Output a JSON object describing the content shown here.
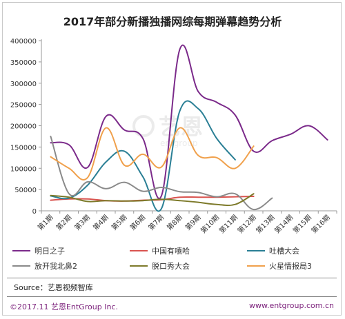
{
  "chart_data": {
    "type": "line",
    "title": "2017年部分新播独播网综每期弹幕趋势分析",
    "categories": [
      "第1期",
      "第2期",
      "第3期",
      "第4期",
      "第5期",
      "第6期",
      "第7期",
      "第8期",
      "第9期",
      "第10期",
      "第11期",
      "第12期",
      "第13期",
      "第14期",
      "第15期",
      "第16期"
    ],
    "ylim": [
      0,
      400000
    ],
    "yticks": [
      0,
      50000,
      100000,
      150000,
      200000,
      250000,
      300000,
      350000,
      400000
    ],
    "ytick_labels": [
      "0",
      "50000",
      "100000",
      "150000",
      "200000",
      "250000",
      "300000",
      "350000",
      "400000"
    ],
    "grid": false,
    "legend_position": "bottom",
    "series": [
      {
        "name": "明日之子",
        "color": "#7b2a8a",
        "values": [
          160000,
          155000,
          102000,
          222000,
          190000,
          170000,
          35000,
          380000,
          280000,
          255000,
          225000,
          140000,
          165000,
          180000,
          200000,
          167000
        ]
      },
      {
        "name": "中国有嘻哈",
        "color": "#d9534f",
        "values": [
          25000,
          28000,
          28000,
          24000,
          23000,
          25000,
          26000,
          32000,
          32000,
          32000,
          33000,
          34000,
          null,
          null,
          null,
          null
        ]
      },
      {
        "name": "吐槽大会",
        "color": "#2a7f95",
        "values": [
          35000,
          30000,
          60000,
          115000,
          140000,
          80000,
          5000,
          235000,
          240000,
          170000,
          120000,
          null,
          null,
          null,
          null,
          null
        ]
      },
      {
        "name": "放开我北鼻2",
        "color": "#8a8a8a",
        "values": [
          175000,
          40000,
          68000,
          52000,
          67000,
          46000,
          55000,
          45000,
          43000,
          33000,
          40000,
          3000,
          30000,
          null,
          null,
          null
        ]
      },
      {
        "name": "脱口秀大会",
        "color": "#7d7a2a",
        "values": [
          36000,
          32000,
          22000,
          24000,
          23000,
          24000,
          27000,
          24000,
          20000,
          15000,
          15000,
          40000,
          null,
          null,
          null,
          null
        ]
      },
      {
        "name": "火星情报局3",
        "color": "#f0a04b",
        "values": [
          127000,
          100000,
          78000,
          195000,
          107000,
          133000,
          103000,
          195000,
          130000,
          125000,
          100000,
          152000,
          null,
          null,
          null,
          null
        ]
      }
    ]
  },
  "source": "Source：艺恩视频智库",
  "footer": {
    "left": "©2017.11  艺恩EntGroup Inc.",
    "right": "www.entgroup.com.cn"
  },
  "watermark": {
    "text": "艺恩",
    "sub": "entgroup",
    "icon": "entgroup-logo-icon"
  }
}
